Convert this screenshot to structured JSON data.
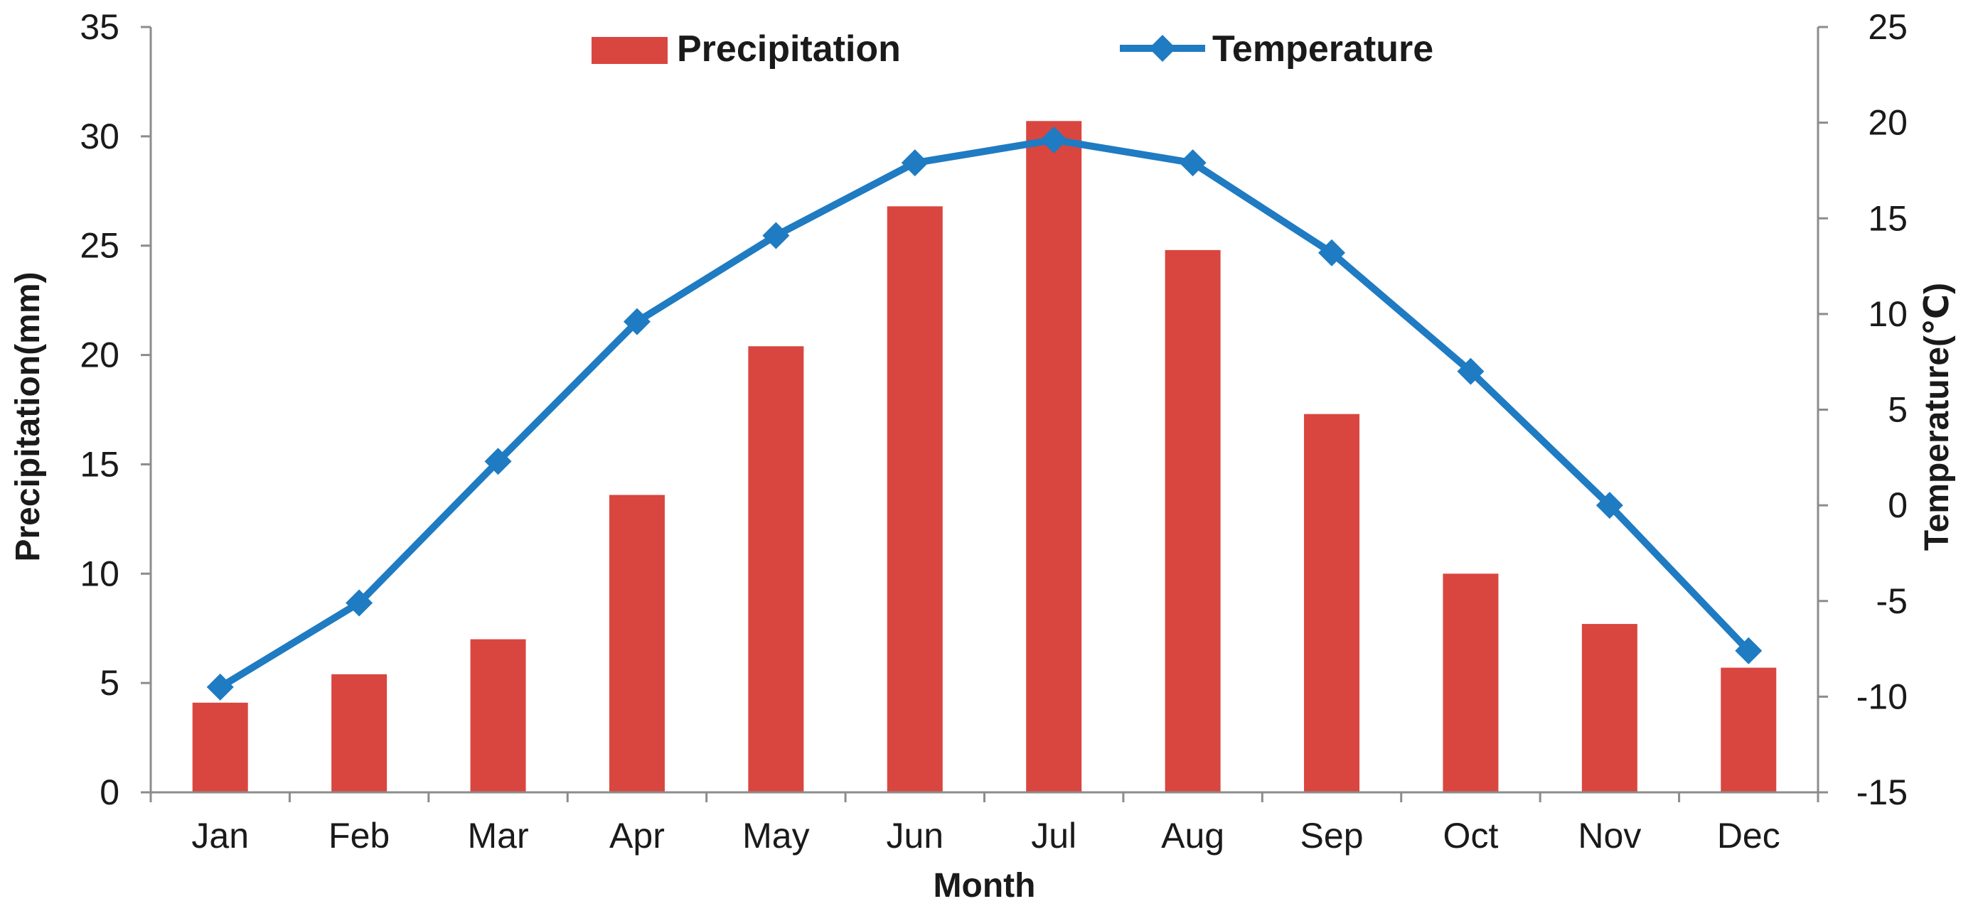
{
  "chart_data": {
    "type": "bar+line",
    "categories": [
      "Jan",
      "Feb",
      "Mar",
      "Apr",
      "May",
      "Jun",
      "Jul",
      "Aug",
      "Sep",
      "Oct",
      "Nov",
      "Dec"
    ],
    "series": [
      {
        "name": "Precipitation",
        "kind": "bar",
        "axis": "left",
        "color": "#d9463f",
        "values": [
          4.1,
          5.4,
          7.0,
          13.6,
          20.4,
          26.8,
          30.7,
          24.8,
          17.3,
          10.0,
          7.7,
          5.7
        ]
      },
      {
        "name": "Temperature",
        "kind": "line",
        "axis": "right",
        "color": "#1f7bc2",
        "marker": "diamond",
        "values": [
          -9.5,
          -5.1,
          2.3,
          9.6,
          14.1,
          17.9,
          19.1,
          17.9,
          13.2,
          7.0,
          0.0,
          -7.6
        ]
      }
    ],
    "xlabel": "Month",
    "ylabel": "Precipitation(mm)",
    "y2label": "Temperature(℃)",
    "ylim": [
      0,
      35
    ],
    "yticks": [
      0,
      5,
      10,
      15,
      20,
      25,
      30,
      35
    ],
    "y2lim": [
      -15,
      25
    ],
    "y2ticks": [
      -15,
      -10,
      -5,
      0,
      5,
      10,
      15,
      20,
      25
    ],
    "grid": false,
    "legend": "top-center"
  }
}
